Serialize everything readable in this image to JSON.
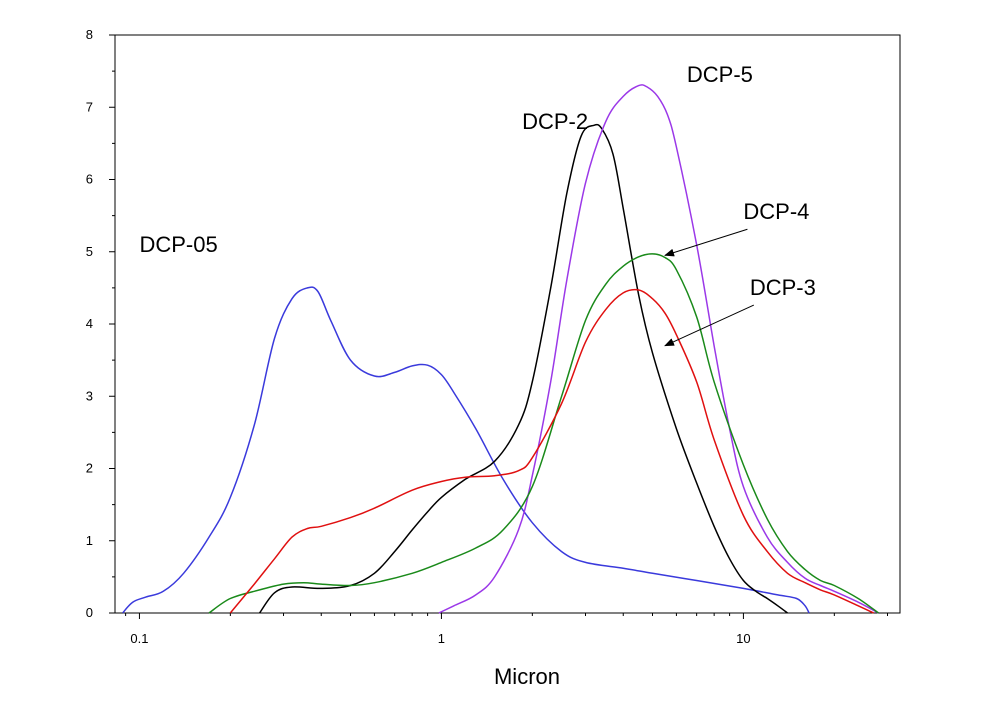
{
  "chart_data": {
    "type": "line",
    "title": "",
    "xlabel": "Micron",
    "ylabel": "",
    "xscale": "log",
    "xlim": [
      0.083,
      33
    ],
    "ylim": [
      0,
      8
    ],
    "grid": false,
    "legend": "none",
    "xticks": [
      {
        "value": 0.1,
        "label": "0.1"
      },
      {
        "value": 1,
        "label": "1"
      },
      {
        "value": 10,
        "label": "10"
      }
    ],
    "yticks": [
      {
        "value": 0,
        "label": "0"
      },
      {
        "value": 1,
        "label": "1"
      },
      {
        "value": 2,
        "label": "2"
      },
      {
        "value": 3,
        "label": "3"
      },
      {
        "value": 4,
        "label": "4"
      },
      {
        "value": 5,
        "label": "5"
      },
      {
        "value": 6,
        "label": "6"
      },
      {
        "value": 7,
        "label": "7"
      },
      {
        "value": 8,
        "label": "8"
      }
    ],
    "series": [
      {
        "name": "DCP-05",
        "color": "#3a3adc",
        "x": [
          0.088,
          0.095,
          0.105,
          0.12,
          0.14,
          0.17,
          0.2,
          0.24,
          0.28,
          0.32,
          0.36,
          0.39,
          0.43,
          0.5,
          0.6,
          0.7,
          0.8,
          0.9,
          1.0,
          1.1,
          1.3,
          1.6,
          2.0,
          2.5,
          3.0,
          4.0,
          5.0,
          7.0,
          10.0,
          13.0,
          15.0,
          16.0,
          16.5
        ],
        "y": [
          0.0,
          0.15,
          0.22,
          0.3,
          0.55,
          1.05,
          1.6,
          2.6,
          3.8,
          4.35,
          4.5,
          4.45,
          4.05,
          3.5,
          3.28,
          3.33,
          3.42,
          3.43,
          3.3,
          3.05,
          2.55,
          1.85,
          1.25,
          0.85,
          0.7,
          0.62,
          0.55,
          0.45,
          0.34,
          0.25,
          0.2,
          0.1,
          0.0
        ]
      },
      {
        "name": "DCP-2",
        "color": "#000000",
        "x": [
          0.25,
          0.28,
          0.32,
          0.4,
          0.5,
          0.6,
          0.7,
          0.8,
          0.9,
          1.0,
          1.2,
          1.5,
          1.8,
          2.0,
          2.3,
          2.6,
          2.9,
          3.2,
          3.4,
          3.7,
          4.0,
          4.5,
          5.0,
          6.0,
          7.0,
          8.0,
          9.0,
          10.0,
          11.0,
          12.0,
          13.0,
          14.0
        ],
        "y": [
          0.0,
          0.28,
          0.36,
          0.34,
          0.38,
          0.55,
          0.85,
          1.15,
          1.4,
          1.6,
          1.85,
          2.1,
          2.6,
          3.2,
          4.5,
          5.8,
          6.6,
          6.75,
          6.7,
          6.35,
          5.6,
          4.4,
          3.6,
          2.55,
          1.8,
          1.2,
          0.75,
          0.45,
          0.3,
          0.2,
          0.1,
          0.0
        ]
      },
      {
        "name": "DCP-5",
        "color": "#9b38e8",
        "x": [
          0.98,
          1.1,
          1.3,
          1.5,
          1.8,
          2.0,
          2.3,
          2.6,
          3.0,
          3.5,
          4.0,
          4.5,
          4.8,
          5.2,
          5.6,
          6.0,
          7.0,
          8.0,
          9.0,
          10.0,
          12.0,
          14.0,
          16.0,
          18.0,
          20.0,
          24.0,
          28.0
        ],
        "y": [
          0.0,
          0.1,
          0.25,
          0.5,
          1.15,
          1.9,
          3.2,
          4.6,
          5.95,
          6.8,
          7.15,
          7.3,
          7.28,
          7.15,
          6.9,
          6.45,
          5.1,
          3.7,
          2.55,
          1.75,
          1.05,
          0.7,
          0.48,
          0.38,
          0.3,
          0.15,
          0.0
        ]
      },
      {
        "name": "DCP-4",
        "color": "#1a8a1a",
        "x": [
          0.17,
          0.2,
          0.25,
          0.3,
          0.35,
          0.4,
          0.5,
          0.6,
          0.8,
          1.0,
          1.3,
          1.6,
          2.0,
          2.5,
          3.0,
          3.5,
          4.0,
          4.5,
          5.0,
          5.5,
          6.0,
          7.0,
          8.0,
          10.0,
          12.0,
          14.0,
          16.0,
          18.0,
          20.0,
          24.0,
          28.0
        ],
        "y": [
          0.0,
          0.2,
          0.32,
          0.4,
          0.42,
          0.4,
          0.38,
          0.42,
          0.55,
          0.7,
          0.9,
          1.15,
          1.75,
          3.0,
          4.05,
          4.55,
          4.8,
          4.93,
          4.97,
          4.92,
          4.75,
          4.1,
          3.2,
          2.05,
          1.3,
          0.85,
          0.6,
          0.45,
          0.38,
          0.2,
          0.0
        ]
      },
      {
        "name": "DCP-3",
        "color": "#e01010",
        "x": [
          0.2,
          0.24,
          0.28,
          0.32,
          0.36,
          0.4,
          0.5,
          0.6,
          0.8,
          1.0,
          1.2,
          1.5,
          1.8,
          2.0,
          2.5,
          3.0,
          3.5,
          4.0,
          4.5,
          5.0,
          5.5,
          6.0,
          7.0,
          8.0,
          10.0,
          12.0,
          14.0,
          16.0,
          18.0,
          20.0,
          24.0,
          27.0
        ],
        "y": [
          0.0,
          0.4,
          0.75,
          1.05,
          1.17,
          1.2,
          1.32,
          1.45,
          1.7,
          1.82,
          1.88,
          1.9,
          1.97,
          2.15,
          2.9,
          3.75,
          4.2,
          4.43,
          4.47,
          4.35,
          4.15,
          3.85,
          3.2,
          2.4,
          1.35,
          0.85,
          0.55,
          0.42,
          0.32,
          0.25,
          0.1,
          0.0
        ]
      }
    ],
    "annotations": [
      {
        "text": "DCP-05",
        "x": 0.1,
        "y": 5.0,
        "arrow": false
      },
      {
        "text": "DCP-2",
        "x": 1.85,
        "y": 6.7,
        "arrow": false
      },
      {
        "text": "DCP-5",
        "x": 6.5,
        "y": 7.35,
        "arrow": false
      },
      {
        "text": "DCP-4",
        "x": 10.0,
        "y": 5.45,
        "arrow": true,
        "arrow_to_x": 5.5,
        "arrow_to_y": 4.95
      },
      {
        "text": "DCP-3",
        "x": 10.5,
        "y": 4.4,
        "arrow": true,
        "arrow_to_x": 5.5,
        "arrow_to_y": 3.7
      }
    ]
  }
}
